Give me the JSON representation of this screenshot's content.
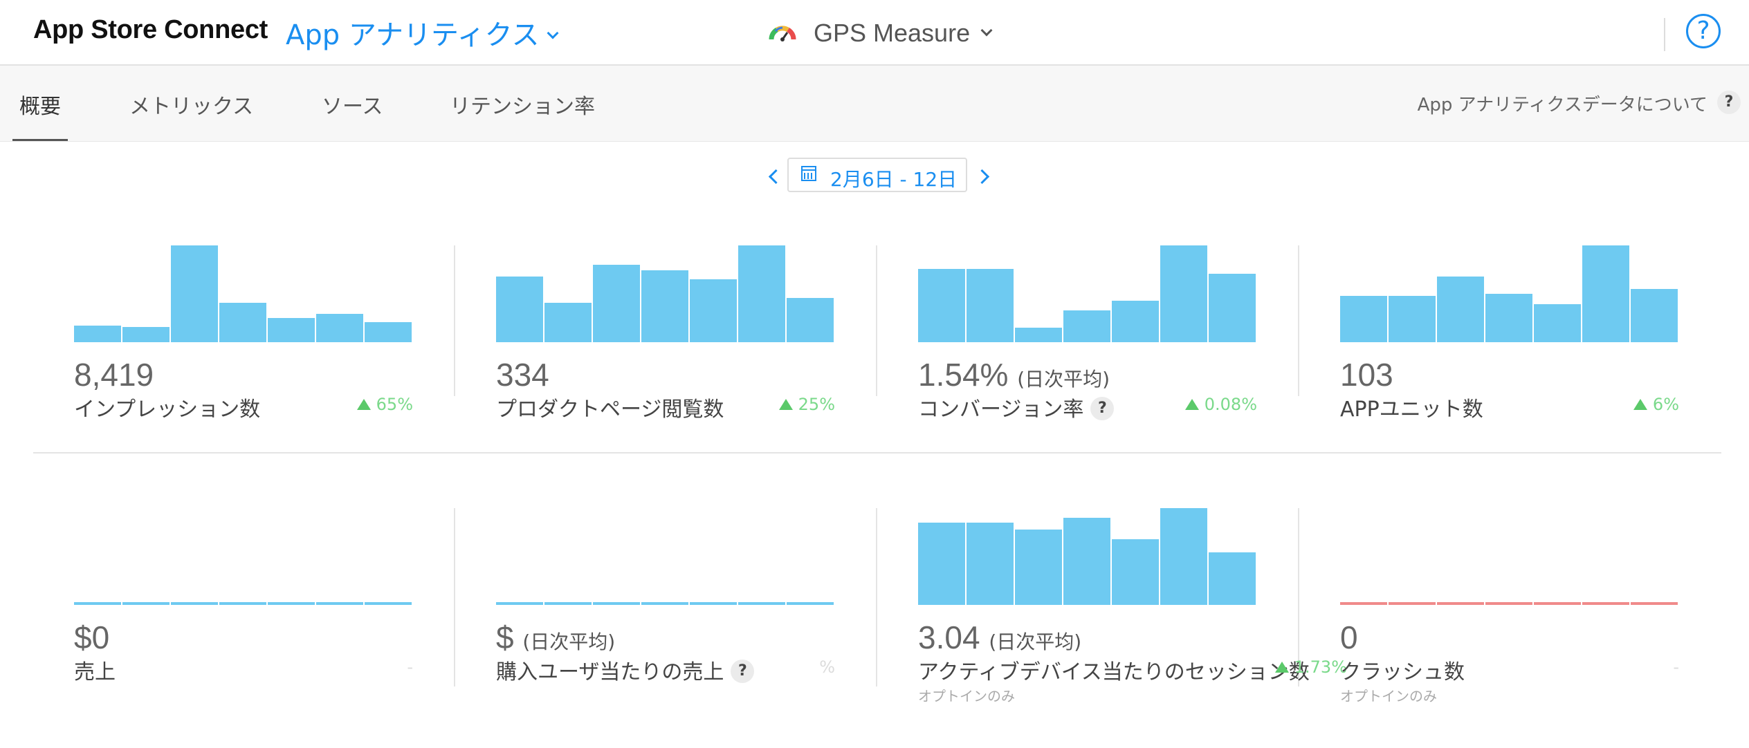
{
  "header": {
    "brand": "App Store Connect",
    "module": "App アナリティクス",
    "app_name": "GPS Measure",
    "help": "?"
  },
  "tabs": [
    {
      "label": "概要",
      "active": true
    },
    {
      "label": "メトリックス"
    },
    {
      "label": "ソース"
    },
    {
      "label": "リテンション率"
    }
  ],
  "about": {
    "label": "App アナリティクスデータについて",
    "q": "?"
  },
  "date_range": "2月6日 - 12日",
  "colors": {
    "accent": "#1a8ef0",
    "bar": "#6ecaf1",
    "positive": "#5bc96a",
    "crash": "#f08a8a"
  },
  "metrics": [
    {
      "value": "8,419",
      "label": "インプレッション数",
      "change": "65%",
      "bars": [
        0.17,
        0.16,
        1.0,
        0.41,
        0.25,
        0.29,
        0.21
      ]
    },
    {
      "value": "334",
      "label": "プロダクトページ閲覧数",
      "change": "25%",
      "bars": [
        0.68,
        0.41,
        0.8,
        0.74,
        0.65,
        1.0,
        0.46
      ]
    },
    {
      "value": "1.54%",
      "value_sub": "(日次平均)",
      "label": "コンバージョン率",
      "help": "?",
      "change": "0.08%",
      "bars": [
        0.76,
        0.76,
        0.15,
        0.33,
        0.43,
        1.0,
        0.71
      ]
    },
    {
      "value": "103",
      "label": "APPユニット数",
      "change": "6%",
      "bars": [
        0.48,
        0.48,
        0.68,
        0.5,
        0.39,
        1.0,
        0.55
      ]
    },
    {
      "value": "$0",
      "label": "売上",
      "change": "-"
    },
    {
      "value": "$",
      "value_sub": "(日次平均)",
      "label": "購入ユーザ当たりの売上",
      "help": "?",
      "change": "%"
    },
    {
      "value": "3.04",
      "value_sub": "(日次平均)",
      "label": "アクティブデバイス当たりのセッション数",
      "change": "1.73%",
      "note": "オプトインのみ",
      "bars": [
        0.85,
        0.85,
        0.78,
        0.9,
        0.68,
        1.0,
        0.54
      ]
    },
    {
      "value": "0",
      "label": "クラッシュ数",
      "change": "-",
      "note": "オプトインのみ"
    }
  ]
}
